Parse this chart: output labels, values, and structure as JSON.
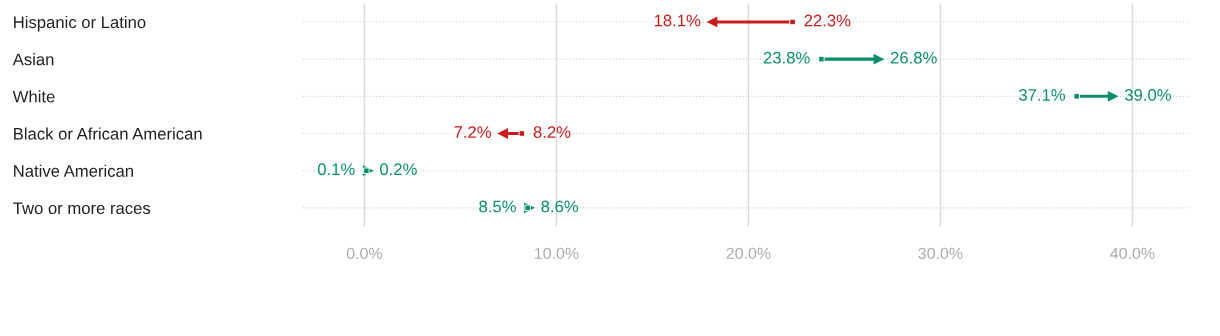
{
  "chart_data": {
    "type": "scatter",
    "orientation": "horizontal",
    "categories": [
      "Hispanic or Latino",
      "Asian",
      "White",
      "Black or African American",
      "Native American",
      "Two or more races"
    ],
    "series": [
      {
        "marker": "square",
        "values": [
          22.3,
          23.8,
          37.1,
          8.2,
          0.1,
          8.5
        ],
        "colors": [
          "#c71e1d",
          "#0a8f6e",
          "#0a8f6e",
          "#c71e1d",
          "#0a8f6e",
          "#0a8f6e"
        ],
        "value_labels": [
          "22.3%",
          "23.8%",
          "37.1%",
          "8.2%",
          "0.1%",
          "8.5%"
        ]
      },
      {
        "marker": "triangle",
        "values": [
          18.1,
          26.8,
          39.0,
          7.2,
          0.2,
          8.6
        ],
        "colors": [
          "#c71e1d",
          "#0a8f6e",
          "#0a8f6e",
          "#c71e1d",
          "#0a8f6e",
          "#0a8f6e"
        ],
        "value_labels": [
          "18.1%",
          "26.8%",
          "39.0%",
          "7.2%",
          "0.2%",
          "8.6%"
        ]
      }
    ],
    "xlim": [
      -3.2,
      43.0
    ],
    "xticks": [
      {
        "value": 0,
        "label": "0.0%"
      },
      {
        "value": 10,
        "label": "10.0%"
      },
      {
        "value": 20,
        "label": "20.0%"
      },
      {
        "value": 30,
        "label": "30.0%"
      },
      {
        "value": 40,
        "label": "40.0%"
      }
    ],
    "grid": true
  }
}
